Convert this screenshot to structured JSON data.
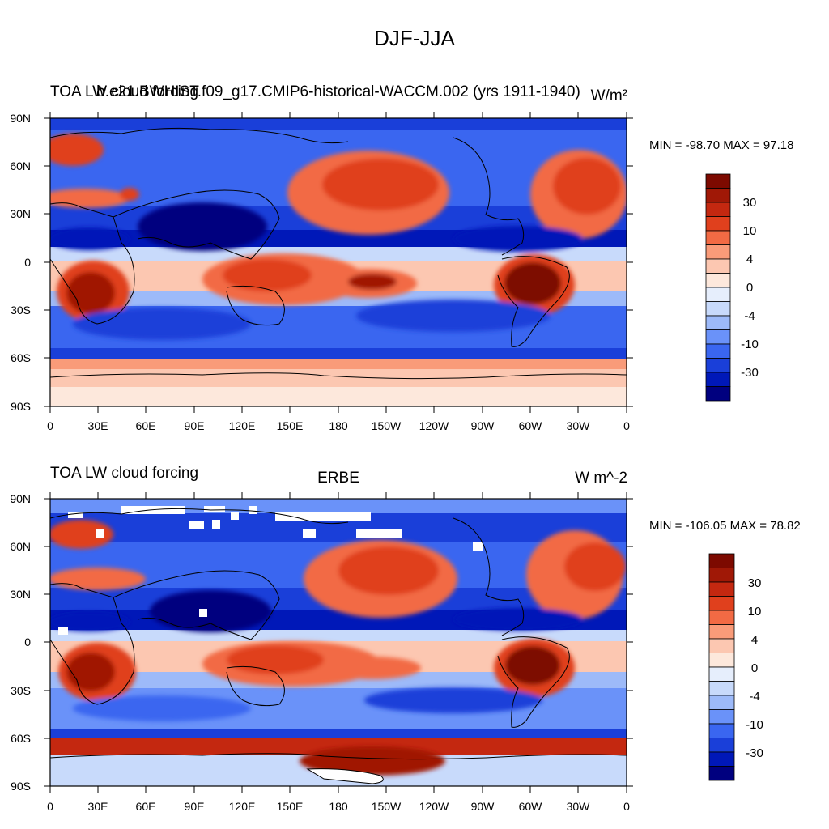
{
  "title": "DJF-JJA",
  "colors": {
    "levels": [
      "#00007f",
      "#0018b8",
      "#1a3fd9",
      "#3a66f0",
      "#6a92f9",
      "#9dbaf9",
      "#c8dafb",
      "#e6eefc",
      "#fde8dc",
      "#fcc7b1",
      "#f99b79",
      "#f26a44",
      "#e0401d",
      "#c42810",
      "#a01806",
      "#7d0a00"
    ],
    "coast": "#000000",
    "missing": "#ffffff"
  },
  "x_ticks": [
    "0",
    "30E",
    "60E",
    "90E",
    "120E",
    "150E",
    "180",
    "150W",
    "120W",
    "90W",
    "60W",
    "30W",
    "0"
  ],
  "y_ticks": [
    "90N",
    "60N",
    "30N",
    "0",
    "30S",
    "60S",
    "90S"
  ],
  "legend_labels": [
    "30",
    "10",
    "4",
    "0",
    "-4",
    "-10",
    "-30"
  ],
  "panels": [
    {
      "id": "top",
      "left_title": "TOA LW cloud forcing",
      "center_title": "b.e21.BWHIST.f09_g17.CMIP6-historical-WACCM.002 (yrs 1911-1940)",
      "right_title": "W/m²",
      "minmax": "MIN = -98.70 MAX =  97.18"
    },
    {
      "id": "bottom",
      "left_title": "TOA LW cloud forcing",
      "center_title": "ERBE",
      "right_title": "W m^-2",
      "minmax": "MIN = -106.05 MAX =  78.82"
    }
  ]
}
